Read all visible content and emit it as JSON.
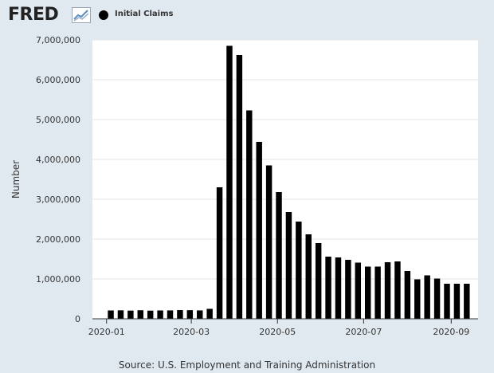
{
  "header": {
    "logo_text": "FRED",
    "logo_icon": "trend-chart-icon"
  },
  "chart_data": {
    "type": "bar",
    "title": "",
    "xlabel": "",
    "ylabel": "Number",
    "ylim": [
      0,
      7000000
    ],
    "y_ticks": [
      0,
      1000000,
      2000000,
      3000000,
      4000000,
      5000000,
      6000000,
      7000000
    ],
    "y_tick_labels": [
      "0",
      "1,000,000",
      "2,000,000",
      "3,000,000",
      "4,000,000",
      "5,000,000",
      "6,000,000",
      "7,000,000"
    ],
    "x_range": [
      "2019-12-22",
      "2020-09-20"
    ],
    "x_tick_labels": [
      "2020-01",
      "2020-03",
      "2020-05",
      "2020-07",
      "2020-09"
    ],
    "x_tick_dates": [
      "2020-01-01",
      "2020-03-01",
      "2020-05-01",
      "2020-07-01",
      "2020-09-01"
    ],
    "grid": true,
    "legend_position": "top-left",
    "series": [
      {
        "name": "Initial Claims",
        "color": "#000000",
        "x": [
          "2020-01-04",
          "2020-01-11",
          "2020-01-18",
          "2020-01-25",
          "2020-02-01",
          "2020-02-08",
          "2020-02-15",
          "2020-02-22",
          "2020-02-29",
          "2020-03-07",
          "2020-03-14",
          "2020-03-21",
          "2020-03-28",
          "2020-04-04",
          "2020-04-11",
          "2020-04-18",
          "2020-04-25",
          "2020-05-02",
          "2020-05-09",
          "2020-05-16",
          "2020-05-23",
          "2020-05-30",
          "2020-06-06",
          "2020-06-13",
          "2020-06-20",
          "2020-06-27",
          "2020-07-04",
          "2020-07-11",
          "2020-07-18",
          "2020-07-25",
          "2020-08-01",
          "2020-08-08",
          "2020-08-15",
          "2020-08-22",
          "2020-08-29",
          "2020-09-05",
          "2020-09-12"
        ],
        "values": [
          210000,
          213000,
          206000,
          215000,
          205000,
          210000,
          211000,
          219000,
          217000,
          211000,
          250000,
          3300000,
          6850000,
          6620000,
          5230000,
          4440000,
          3850000,
          3180000,
          2680000,
          2440000,
          2120000,
          1900000,
          1560000,
          1540000,
          1480000,
          1410000,
          1310000,
          1310000,
          1420000,
          1440000,
          1200000,
          990000,
          1090000,
          1010000,
          880000,
          880000,
          880000
        ]
      }
    ]
  },
  "source": "Source: U.S. Employment and Training Administration"
}
